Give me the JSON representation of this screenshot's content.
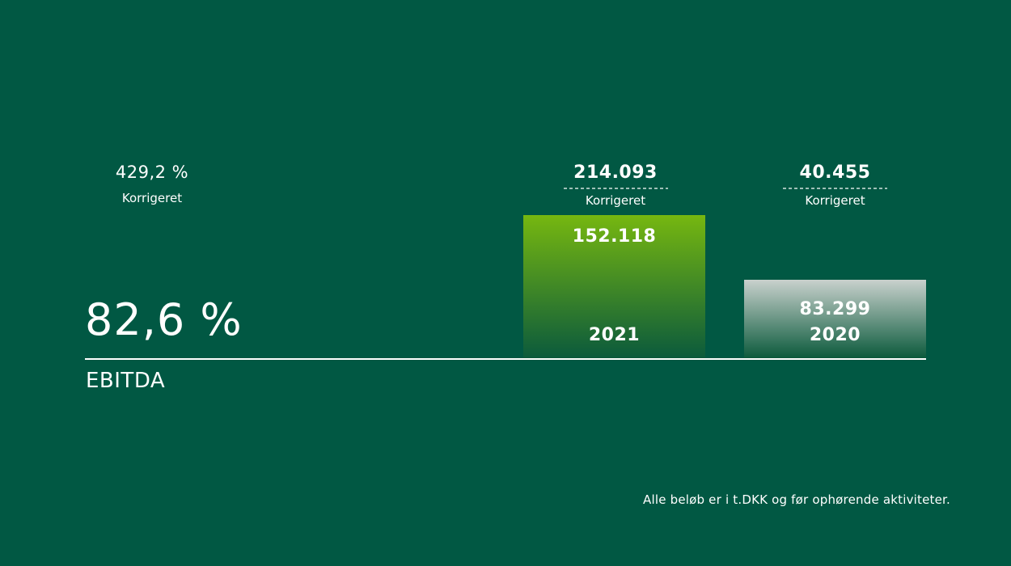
{
  "ratio": {
    "adjusted_value": "429,2 %",
    "adjusted_label": "Korrigeret",
    "value": "82,6 %"
  },
  "metric_label": "EBITDA",
  "colors": {
    "background": "#015843",
    "bar_2021_top": "#76b710",
    "bar_2021_bottom": "#0b5a3c",
    "bar_2020_top": "#c9d1cd",
    "bar_2020_bottom": "#0b5a3c",
    "baseline": "#ffffff"
  },
  "chart_data": {
    "type": "bar",
    "title": "EBITDA",
    "categories": [
      "2021",
      "2020"
    ],
    "values": [
      152118,
      83299
    ],
    "adjusted_values": [
      214093,
      40455
    ],
    "ylim": [
      0,
      152118
    ],
    "grid": false,
    "legend": "none",
    "bars": [
      {
        "year": "2021",
        "value": 152118,
        "value_label": "152.118",
        "adjusted_label": "214.093",
        "adjusted_caption": "Korrigeret"
      },
      {
        "year": "2020",
        "value": 83299,
        "value_label": "83.299",
        "adjusted_label": "40.455",
        "adjusted_caption": "Korrigeret"
      }
    ]
  },
  "footnote": "Alle beløb er i t.DKK og før ophørende aktiviteter."
}
